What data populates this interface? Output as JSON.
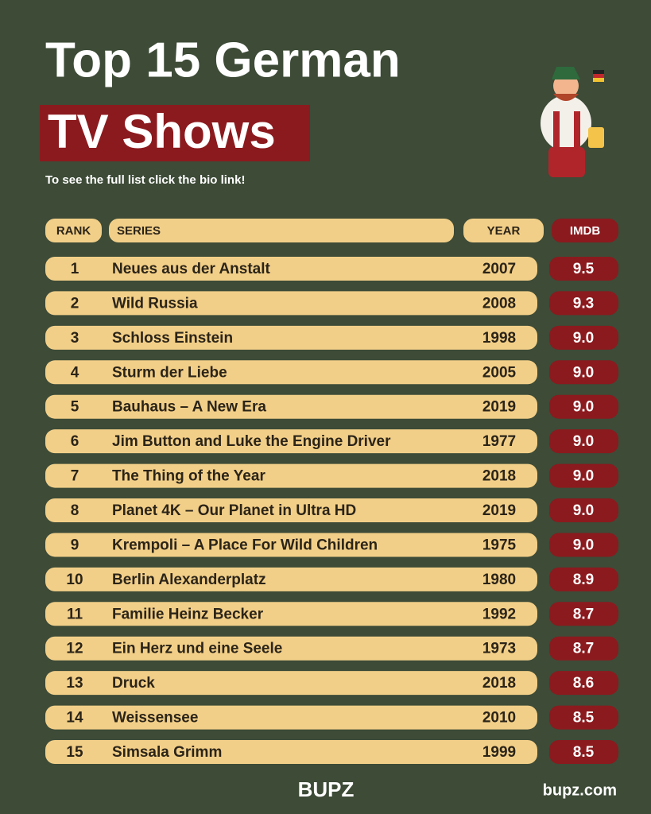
{
  "header": {
    "title": "Top 15 German",
    "highlight": "TV Shows",
    "subtitle": "To see the full list click the bio link!"
  },
  "table": {
    "columns": [
      "RANK",
      "SERIES",
      "YEAR",
      "IMDB"
    ],
    "rows": [
      [
        "1",
        "Neues aus der Anstalt",
        "2007",
        "9.5"
      ],
      [
        "2",
        "Wild Russia",
        "2008",
        "9.3"
      ],
      [
        "3",
        "Schloss Einstein",
        "1998",
        "9.0"
      ],
      [
        "4",
        "Sturm der Liebe",
        "2005",
        "9.0"
      ],
      [
        "5",
        "Bauhaus – A New Era",
        "2019",
        "9.0"
      ],
      [
        "6",
        "Jim Button and Luke the Engine Driver",
        "1977",
        "9.0"
      ],
      [
        "7",
        "The Thing of the Year",
        "2018",
        "9.0"
      ],
      [
        "8",
        "Planet 4K – Our Planet in Ultra HD",
        "2019",
        "9.0"
      ],
      [
        "9",
        "Krempoli – A Place For Wild Children",
        "1975",
        "9.0"
      ],
      [
        "10",
        "Berlin Alexanderplatz",
        "1980",
        "8.9"
      ],
      [
        "11",
        "Familie Heinz Becker",
        "1992",
        "8.7"
      ],
      [
        "12",
        "Ein Herz und eine Seele",
        "1973",
        "8.7"
      ],
      [
        "13",
        "Druck",
        "2018",
        "8.6"
      ],
      [
        "14",
        "Weissensee",
        "2010",
        "8.5"
      ],
      [
        "15",
        "Simsala Grimm",
        "1999",
        "8.5"
      ]
    ]
  },
  "footer": {
    "logo": "BUPZ",
    "website": "bupz.com"
  }
}
